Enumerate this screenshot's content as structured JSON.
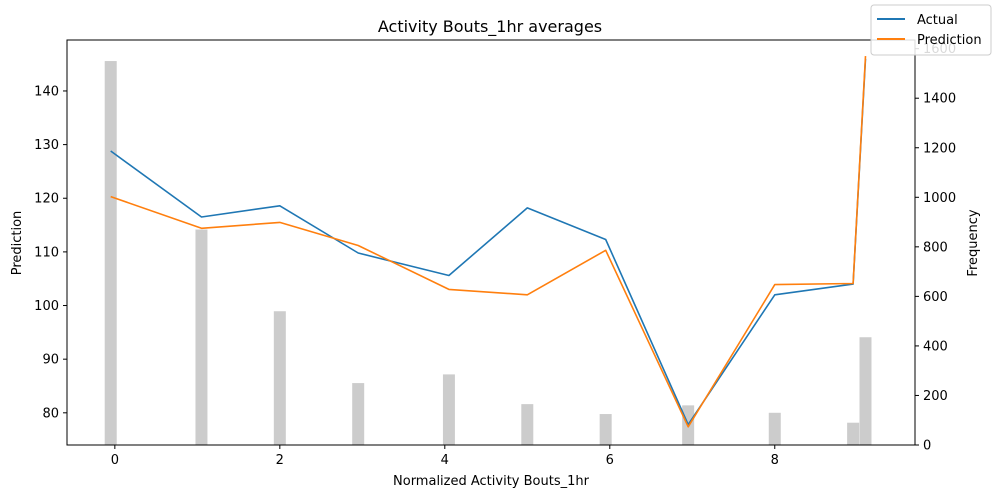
{
  "chart_data": {
    "type": "line",
    "title": "Activity Bouts_1hr averages",
    "xlabel": "Normalized Activity Bouts_1hr",
    "ylabel": "Prediction",
    "y2label": "Frequency",
    "xlim": [
      -0.58,
      9.7
    ],
    "ylim": [
      74,
      149.5
    ],
    "y2lim": [
      0,
      1635
    ],
    "xticks": [
      0,
      2,
      4,
      6,
      8
    ],
    "yticks": [
      80,
      90,
      100,
      110,
      120,
      130,
      140
    ],
    "y2ticks": [
      0,
      200,
      400,
      600,
      800,
      1000,
      1200,
      1400,
      1600
    ],
    "legend_position": "top-right",
    "series": [
      {
        "name": "Actual",
        "color": "#1f77b4",
        "x": [
          -0.05,
          1.05,
          2.0,
          2.95,
          4.05,
          5.0,
          5.95,
          6.95,
          8.0,
          8.95,
          9.1
        ],
        "y": [
          128.8,
          116.5,
          118.6,
          109.8,
          105.6,
          118.2,
          112.3,
          77.8,
          102.0,
          104.0,
          146.0
        ]
      },
      {
        "name": "Prediction",
        "color": "#ff7f0e",
        "x": [
          -0.05,
          1.05,
          2.0,
          2.95,
          4.05,
          5.0,
          5.95,
          6.95,
          8.0,
          8.95,
          9.1
        ],
        "y": [
          120.3,
          114.4,
          115.5,
          111.2,
          103.0,
          102.0,
          110.3,
          77.4,
          103.9,
          104.1,
          146.5
        ]
      }
    ],
    "histogram": {
      "name": "Frequency",
      "color": "#cccccc",
      "x": [
        -0.05,
        1.05,
        2.0,
        2.95,
        4.05,
        5.0,
        5.95,
        6.95,
        8.0,
        8.95,
        9.1
      ],
      "values": [
        1550,
        870,
        540,
        250,
        285,
        165,
        125,
        160,
        130,
        90,
        435
      ]
    }
  }
}
